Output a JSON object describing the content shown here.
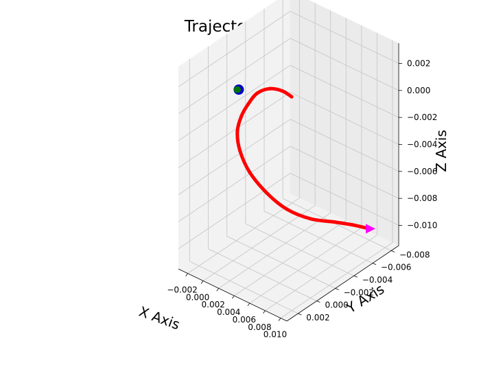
{
  "chart_data": {
    "type": "line3d",
    "title": "Trajectories",
    "xlabel": "X Axis",
    "ylabel": "Y Axis",
    "zlabel": "Z Axis",
    "grid": true,
    "x_ticks": [
      "−0.002",
      "0.000",
      "0.002",
      "0.004",
      "0.006",
      "0.008",
      "0.010"
    ],
    "y_ticks": [
      "−0.008",
      "−0.006",
      "−0.004",
      "−0.002",
      "0.000",
      "0.002"
    ],
    "z_ticks": [
      "−0.010",
      "−0.008",
      "−0.006",
      "−0.004",
      "−0.002",
      "0.000",
      "0.002"
    ],
    "series": [
      {
        "marker": "line",
        "color": "#ff0000",
        "points": [
          {
            "x": 0.0072,
            "y": -0.0003,
            "z": 0.0025
          },
          {
            "x": 0.006,
            "y": -0.0003,
            "z": 0.0026
          },
          {
            "x": 0.0045,
            "y": -0.0002,
            "z": 0.0024
          },
          {
            "x": 0.003,
            "y": -0.0001,
            "z": 0.0017
          },
          {
            "x": 0.002,
            "y": 0.0,
            "z": 0.0007
          },
          {
            "x": 0.0012,
            "y": 0.0001,
            "z": -0.0004
          },
          {
            "x": 0.0008,
            "y": 0.0002,
            "z": -0.0016
          },
          {
            "x": 0.001,
            "y": 0.0001,
            "z": -0.003
          },
          {
            "x": 0.0019,
            "y": -0.0002,
            "z": -0.0045
          },
          {
            "x": 0.0033,
            "y": -0.0009,
            "z": -0.006
          },
          {
            "x": 0.0048,
            "y": -0.0018,
            "z": -0.0072
          },
          {
            "x": 0.0063,
            "y": -0.0031,
            "z": -0.0081
          },
          {
            "x": 0.0075,
            "y": -0.0046,
            "z": -0.0087
          },
          {
            "x": 0.0083,
            "y": -0.0059,
            "z": -0.0093
          },
          {
            "x": 0.009,
            "y": -0.0072,
            "z": -0.01
          }
        ]
      },
      {
        "marker": "circle",
        "color": "#0000cc",
        "point": {
          "x": 0.0002,
          "y": -0.0003,
          "z": 0.0011
        }
      },
      {
        "marker": "circle",
        "color": "#007700",
        "point": {
          "x": 0.0002,
          "y": -0.0003,
          "z": 0.0011
        }
      },
      {
        "marker": "triangle-right",
        "color": "#ff00ff",
        "point": {
          "x": 0.009,
          "y": -0.0072,
          "z": -0.01
        }
      }
    ]
  }
}
